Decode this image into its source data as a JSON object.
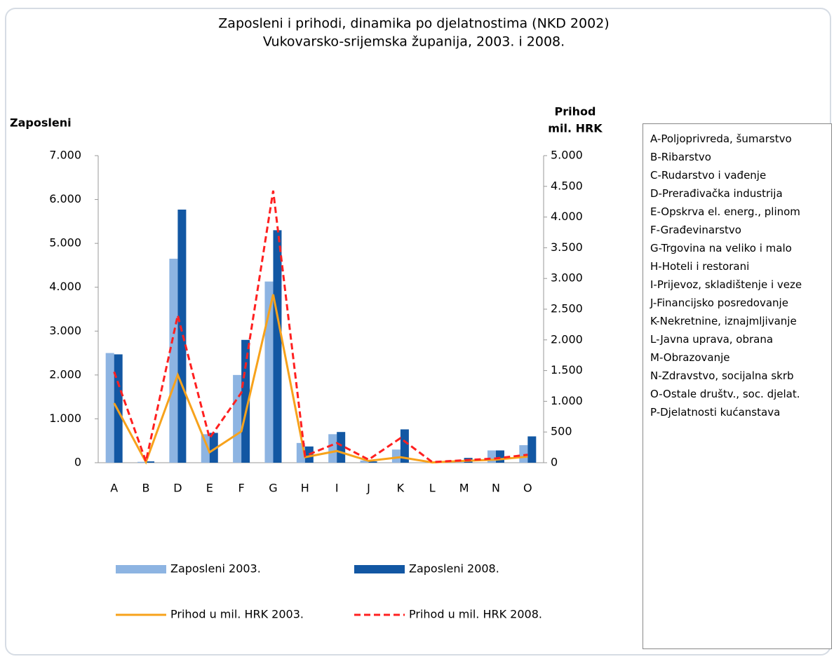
{
  "chart_data": {
    "type": "combo",
    "title": [
      "Zaposleni i prihodi, dinamika po djelatnostima (NKD 2002)",
      "Vukovarsko-srijemska županija, 2003. i 2008."
    ],
    "ylabel": "Zaposleni",
    "y2label": [
      "Prihod",
      "mil. HRK"
    ],
    "categories": [
      "A",
      "B",
      "D",
      "E",
      "F",
      "G",
      "H",
      "I",
      "J",
      "K",
      "L",
      "M",
      "N",
      "O"
    ],
    "ylim": [
      0,
      7000
    ],
    "yticks": [
      0,
      {
        "value": 1000,
        "label": "1.000"
      },
      {
        "value": 2000,
        "label": "2.000"
      },
      {
        "value": 3000,
        "label": "3.000"
      },
      {
        "value": 4000,
        "label": "4.000"
      },
      {
        "value": 5000,
        "label": "5.000"
      },
      {
        "value": 6000,
        "label": "6.000"
      },
      {
        "value": 7000,
        "label": "7.000"
      }
    ],
    "y2lim": [
      0,
      5000
    ],
    "y2ticks": [
      0,
      500,
      {
        "value": 1000,
        "label": "1.000"
      },
      {
        "value": 1500,
        "label": "1.500"
      },
      {
        "value": 2000,
        "label": "2.000"
      },
      {
        "value": 2500,
        "label": "2.500"
      },
      {
        "value": 3000,
        "label": "3.000"
      },
      {
        "value": 3500,
        "label": "3.500"
      },
      {
        "value": 4000,
        "label": "4.000"
      },
      {
        "value": 4500,
        "label": "4.500"
      },
      {
        "value": 5000,
        "label": "5.000"
      }
    ],
    "series": [
      {
        "name": "Zaposleni 2003.",
        "type": "bar",
        "color": "#8db4e2",
        "values": [
          2500,
          20,
          4650,
          650,
          2000,
          4130,
          450,
          650,
          50,
          300,
          10,
          50,
          280,
          400
        ]
      },
      {
        "name": "Zaposleni 2008.",
        "type": "bar",
        "color": "#1257a3",
        "values": [
          2470,
          30,
          5770,
          680,
          2800,
          5300,
          370,
          700,
          30,
          760,
          10,
          110,
          280,
          600
        ]
      },
      {
        "name": "Prihod u mil. HRK 2003.",
        "type": "line",
        "axis": "y2",
        "color": "#f7a21b",
        "dashed": false,
        "values": [
          970,
          10,
          1430,
          170,
          510,
          2740,
          90,
          190,
          30,
          90,
          5,
          30,
          50,
          100
        ]
      },
      {
        "name": "Prihod u mil. HRK 2008.",
        "type": "line",
        "axis": "y2",
        "color": "#ff2020",
        "dashed": true,
        "values": [
          1480,
          20,
          2400,
          400,
          1140,
          4430,
          110,
          320,
          50,
          400,
          10,
          40,
          70,
          130
        ]
      }
    ],
    "key": [
      "A-Poljoprivreda, šumarstvo",
      "B-Ribarstvo",
      "C-Rudarstvo i vađenje",
      "D-Prerađivačka industrija",
      "E-Opskrva el. energ., plinom",
      "F-Građevinarstvo",
      "G-Trgovina na veliko i malo",
      "H-Hoteli i restorani",
      "I-Prijevoz, skladištenje i veze",
      "J-Financijsko posredovanje",
      "K-Nekretnine, iznajmljivanje",
      "L-Javna uprava, obrana",
      "M-Obrazovanje",
      "N-Zdravstvo, socijalna skrb",
      "O-Ostale društv., soc. djelat.",
      "P-Djelatnosti kućanstava"
    ]
  }
}
